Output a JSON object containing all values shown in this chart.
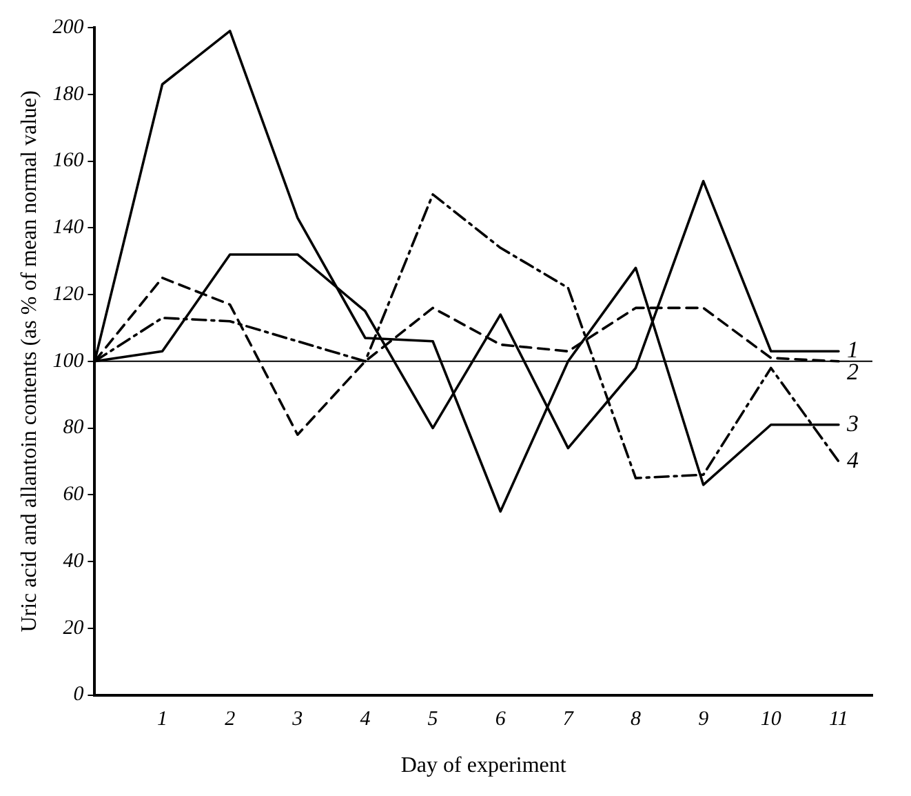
{
  "chart_data": {
    "type": "line",
    "xlabel": "Day of experiment",
    "ylabel": "Uric acid and allantoin contents (as % of mean normal value)",
    "x": [
      0,
      1,
      2,
      3,
      4,
      5,
      6,
      7,
      8,
      9,
      10,
      11
    ],
    "series": [
      {
        "name": "1",
        "color": "#000000",
        "line_style": "solid",
        "values": [
          100,
          103,
          132,
          132,
          115,
          80,
          114,
          74,
          98,
          154,
          103,
          103
        ]
      },
      {
        "name": "2",
        "color": "#000000",
        "line_style": "dashed",
        "values": [
          100,
          125,
          117,
          78,
          100,
          116,
          105,
          103,
          116,
          116,
          101,
          100
        ]
      },
      {
        "name": "3",
        "color": "#000000",
        "line_style": "solid",
        "values": [
          100,
          183,
          199,
          143,
          107,
          106,
          55,
          100,
          128,
          63,
          81,
          81
        ]
      },
      {
        "name": "4",
        "color": "#000000",
        "line_style": "dashdot",
        "values": [
          100,
          113,
          112,
          106,
          100,
          150,
          134,
          122,
          65,
          66,
          98,
          70
        ]
      }
    ],
    "xlim": [
      0,
      11.5
    ],
    "xticks": [
      1,
      2,
      3,
      4,
      5,
      6,
      7,
      8,
      9,
      10,
      11
    ],
    "ylim": [
      0,
      200
    ],
    "yticks": [
      0,
      20,
      40,
      60,
      80,
      100,
      120,
      140,
      160,
      180,
      200
    ],
    "ref_lines": [
      {
        "axis": "y",
        "value": 100,
        "color": "#000000"
      }
    ],
    "grid": false,
    "legend": false,
    "marker": "none"
  }
}
